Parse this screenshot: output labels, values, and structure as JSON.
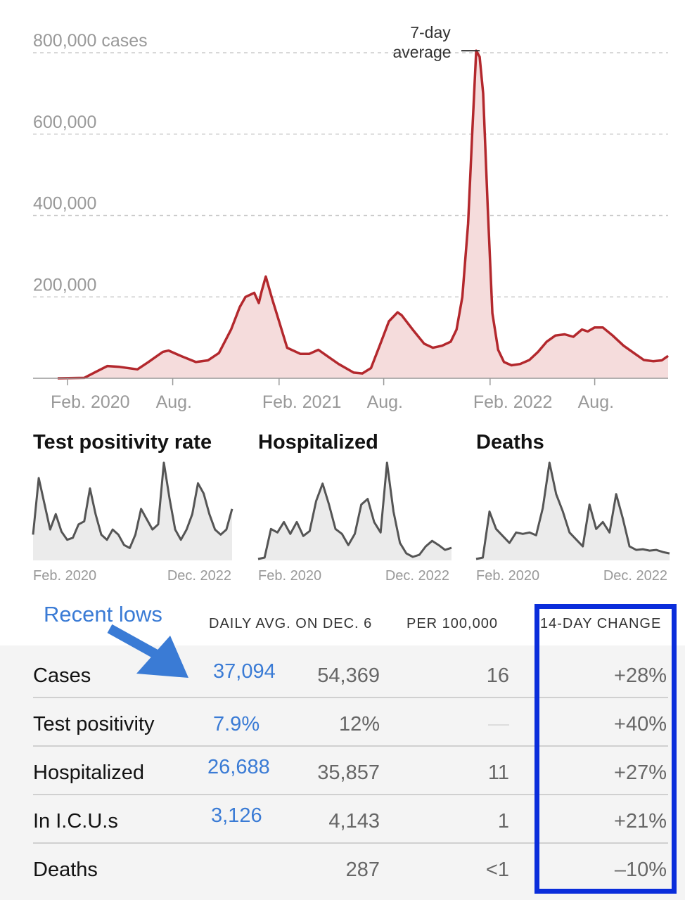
{
  "chart_data": [
    {
      "type": "area",
      "title": "",
      "ylabel": "",
      "ylim": [
        0,
        800000
      ],
      "y_ticks": [
        {
          "value": 800000,
          "label": "800,000 cases"
        },
        {
          "value": 600000,
          "label": "600,000"
        },
        {
          "value": 400000,
          "label": "400,000"
        },
        {
          "value": 200000,
          "label": "200,000"
        }
      ],
      "x_ticks": [
        {
          "date": "2020-02-01",
          "label": "Feb. 2020"
        },
        {
          "date": "2020-08-01",
          "label": "Aug."
        },
        {
          "date": "2021-02-01",
          "label": "Feb. 2021"
        },
        {
          "date": "2021-08-01",
          "label": "Aug."
        },
        {
          "date": "2022-02-01",
          "label": "Feb. 2022"
        },
        {
          "date": "2022-08-01",
          "label": "Aug."
        }
      ],
      "xlim": [
        "2020-01-15",
        "2022-12-06"
      ],
      "grid": true,
      "annotation": {
        "text": [
          "7-day",
          "average"
        ],
        "date": "2022-01-14",
        "value": 805000
      },
      "colors": {
        "line": "#b3282d",
        "fill": "#f5dcdc",
        "grid": "#cccccc"
      },
      "series": [
        {
          "x": [
            "2020-01-15",
            "2020-03-01",
            "2020-03-20",
            "2020-04-10",
            "2020-05-01",
            "2020-06-01",
            "2020-06-20",
            "2020-07-15",
            "2020-07-25",
            "2020-08-15",
            "2020-09-10",
            "2020-10-01",
            "2020-10-20",
            "2020-11-10",
            "2020-11-25",
            "2020-12-05",
            "2020-12-20",
            "2020-12-28",
            "2021-01-02",
            "2021-01-09",
            "2021-01-20",
            "2021-02-01",
            "2021-02-15",
            "2021-03-10",
            "2021-03-25",
            "2021-04-10",
            "2021-04-25",
            "2021-05-15",
            "2021-06-10",
            "2021-06-25",
            "2021-07-10",
            "2021-07-25",
            "2021-08-10",
            "2021-08-25",
            "2021-09-01",
            "2021-09-20",
            "2021-10-10",
            "2021-10-25",
            "2021-11-10",
            "2021-11-25",
            "2021-12-05",
            "2021-12-15",
            "2021-12-25",
            "2022-01-01",
            "2022-01-08",
            "2022-01-14",
            "2022-01-20",
            "2022-01-28",
            "2022-02-05",
            "2022-02-15",
            "2022-02-25",
            "2022-03-10",
            "2022-03-25",
            "2022-04-10",
            "2022-04-25",
            "2022-05-10",
            "2022-05-25",
            "2022-06-10",
            "2022-06-25",
            "2022-07-10",
            "2022-07-20",
            "2022-08-01",
            "2022-08-15",
            "2022-09-01",
            "2022-09-20",
            "2022-10-10",
            "2022-10-25",
            "2022-11-10",
            "2022-11-25",
            "2022-12-06"
          ],
          "y": [
            0,
            1000,
            15000,
            30000,
            28000,
            22000,
            40000,
            65000,
            68000,
            55000,
            40000,
            44000,
            62000,
            120000,
            175000,
            200000,
            210000,
            185000,
            215000,
            250000,
            195000,
            140000,
            75000,
            60000,
            60000,
            70000,
            55000,
            35000,
            14000,
            12000,
            25000,
            80000,
            140000,
            162000,
            155000,
            120000,
            85000,
            75000,
            80000,
            90000,
            120000,
            200000,
            380000,
            600000,
            805000,
            790000,
            700000,
            420000,
            160000,
            70000,
            40000,
            32000,
            35000,
            45000,
            65000,
            90000,
            105000,
            108000,
            102000,
            120000,
            115000,
            125000,
            125000,
            105000,
            80000,
            60000,
            45000,
            42000,
            44000,
            55000
          ]
        }
      ]
    },
    {
      "type": "area",
      "title": "Test positivity rate",
      "x_labels": [
        "Feb. 2020",
        "Dec. 2022"
      ],
      "values": [
        25,
        80,
        55,
        30,
        45,
        28,
        20,
        22,
        35,
        38,
        70,
        45,
        25,
        20,
        30,
        25,
        15,
        12,
        25,
        50,
        40,
        30,
        35,
        95,
        60,
        30,
        20,
        30,
        45,
        75,
        65,
        45,
        30,
        25,
        30,
        50
      ]
    },
    {
      "type": "area",
      "title": "Hospitalized",
      "x_labels": [
        "Feb. 2020",
        "Dec. 2022"
      ],
      "values": [
        2,
        4,
        45,
        40,
        55,
        38,
        55,
        35,
        42,
        85,
        110,
        80,
        45,
        38,
        22,
        38,
        80,
        88,
        55,
        40,
        140,
        70,
        25,
        10,
        5,
        8,
        20,
        28,
        22,
        15,
        18
      ]
    },
    {
      "type": "area",
      "title": "Deaths",
      "x_labels": [
        "Feb. 2020",
        "Dec. 2022"
      ],
      "values": [
        2,
        4,
        70,
        45,
        35,
        25,
        40,
        38,
        40,
        36,
        75,
        140,
        95,
        70,
        40,
        30,
        20,
        80,
        45,
        55,
        40,
        95,
        60,
        20,
        15,
        16,
        14,
        15,
        12,
        10
      ]
    },
    {
      "type": "table",
      "annotation": "Recent lows",
      "columns": [
        "",
        "",
        "DAILY AVG. ON DEC. 6",
        "PER 100,000",
        "14-DAY CHANGE"
      ],
      "rows": [
        {
          "label": "Cases",
          "recent_low": "37,094",
          "daily_avg": "54,369",
          "per_100k": "16",
          "change": "+28%"
        },
        {
          "label": "Test positivity",
          "recent_low": "7.9%",
          "daily_avg": "12%",
          "per_100k": "",
          "change": "+40%"
        },
        {
          "label": "Hospitalized",
          "recent_low": "26,688",
          "daily_avg": "35,857",
          "per_100k": "11",
          "change": "+27%"
        },
        {
          "label": "In I.C.U.s",
          "recent_low": "3,126",
          "daily_avg": "4,143",
          "per_100k": "1",
          "change": "+21%"
        },
        {
          "label": "Deaths",
          "recent_low": "",
          "daily_avg": "287",
          "per_100k": "<1",
          "change": "–10%"
        }
      ],
      "colors": {
        "recent_low": "#3a7bd5",
        "highlight_box": "#0a2ddb"
      }
    }
  ]
}
